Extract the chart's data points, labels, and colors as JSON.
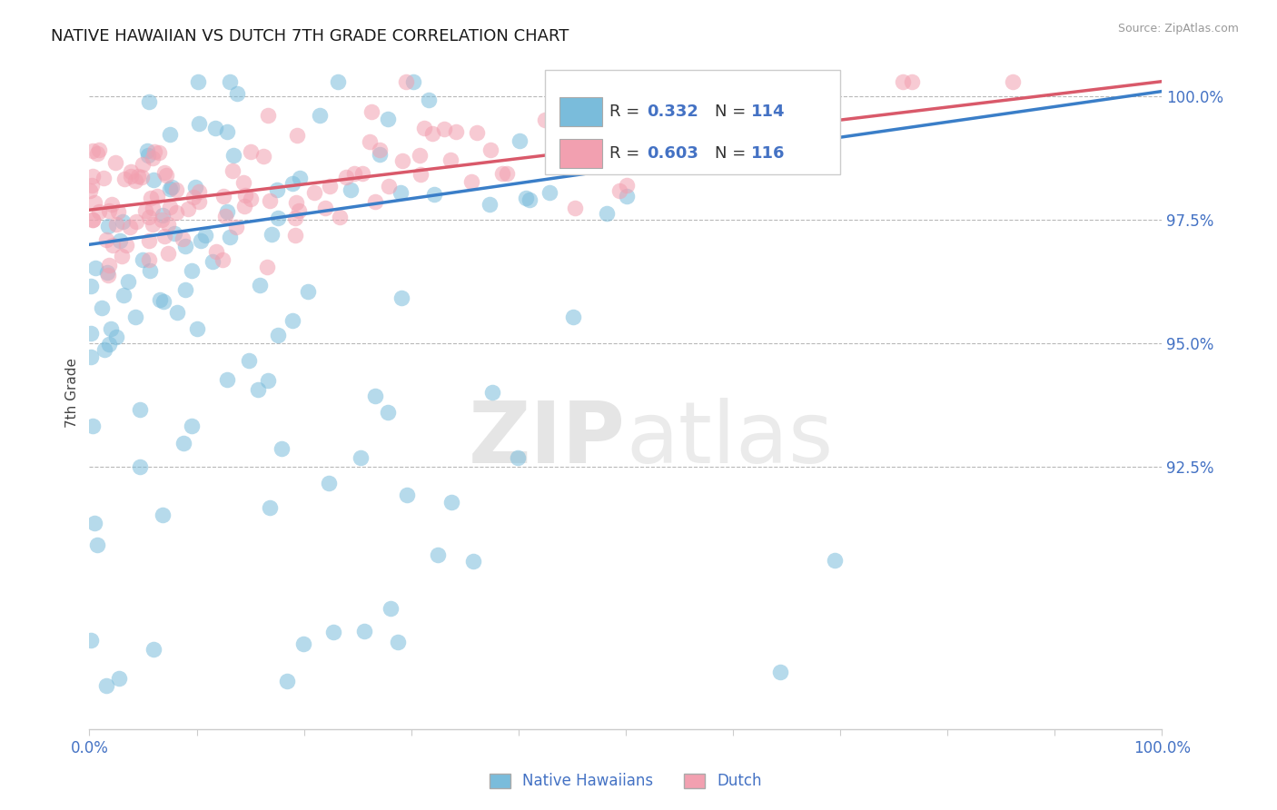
{
  "title": "NATIVE HAWAIIAN VS DUTCH 7TH GRADE CORRELATION CHART",
  "source_text": "Source: ZipAtlas.com",
  "ylabel": "7th Grade",
  "xlim": [
    0.0,
    1.0
  ],
  "ylim": [
    0.872,
    1.008
  ],
  "yticks": [
    0.925,
    0.95,
    0.975,
    1.0
  ],
  "ytick_labels": [
    "92.5%",
    "95.0%",
    "97.5%",
    "100.0%"
  ],
  "r_native": 0.332,
  "n_native": 114,
  "r_dutch": 0.603,
  "n_dutch": 116,
  "color_native": "#7abcdb",
  "color_dutch": "#f2a0b0",
  "color_line_native": "#3a7ec8",
  "color_line_dutch": "#d9596a",
  "color_r_text": "#4472c4",
  "legend_label_native": "Native Hawaiians",
  "legend_label_dutch": "Dutch",
  "title_fontsize": 13,
  "tick_label_color": "#4472c4",
  "background_color": "#ffffff",
  "seed": 42
}
